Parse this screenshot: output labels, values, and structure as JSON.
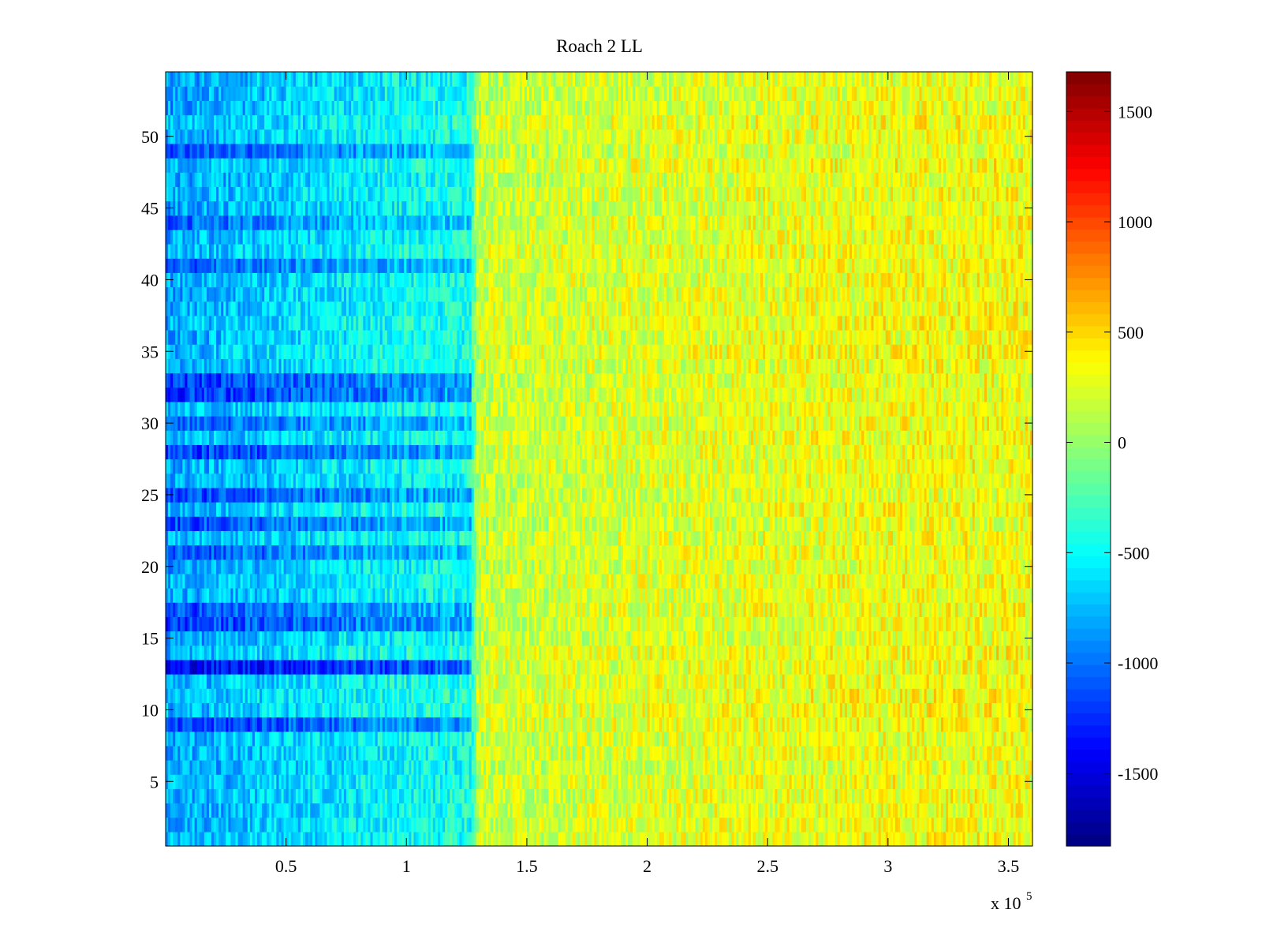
{
  "chart_data": {
    "type": "heatmap",
    "title": "Roach 2 LL",
    "xlabel": "",
    "ylabel": "",
    "x_range": [
      0,
      360000
    ],
    "y_range": [
      0.5,
      54.5
    ],
    "x_ticks": [
      50000,
      100000,
      150000,
      200000,
      250000,
      300000,
      350000
    ],
    "x_tick_labels": [
      "0.5",
      "1",
      "1.5",
      "2",
      "2.5",
      "3",
      "3.5"
    ],
    "x_exponent_label": "x 10",
    "x_exponent_power": "5",
    "y_ticks": [
      5,
      10,
      15,
      20,
      25,
      30,
      35,
      40,
      45,
      50
    ],
    "y_tick_labels": [
      "5",
      "10",
      "15",
      "20",
      "25",
      "30",
      "35",
      "40",
      "45",
      "50"
    ],
    "num_rows": 54,
    "colormap": "jet",
    "clim": [
      -1830,
      1680
    ],
    "colorbar": {
      "ticks": [
        -1500,
        -1000,
        -500,
        0,
        500,
        1000,
        1500
      ],
      "tick_labels": [
        "-1500",
        "-1000",
        "-500",
        "0",
        "500",
        "1000",
        "1500"
      ]
    },
    "column_profile": {
      "description": "Approximate mean value per x-segment (all rows)",
      "x": [
        0,
        30000,
        60000,
        90000,
        127000,
        130000,
        180000,
        230000,
        280000,
        330000,
        360000
      ],
      "mean": [
        -820,
        -720,
        -620,
        -520,
        -430,
        180,
        220,
        260,
        300,
        330,
        320
      ]
    },
    "row_offsets": {
      "description": "Per-row offset (approx) applied in the low-x region; rows listed are strongly negative bands",
      "rows": [
        9,
        13,
        16,
        17,
        21,
        23,
        25,
        28,
        30,
        32,
        33,
        41,
        44,
        49
      ],
      "offsets": [
        -450,
        -620,
        -380,
        -350,
        -300,
        -300,
        -320,
        -420,
        -280,
        -420,
        -380,
        -280,
        -260,
        -260
      ]
    }
  }
}
